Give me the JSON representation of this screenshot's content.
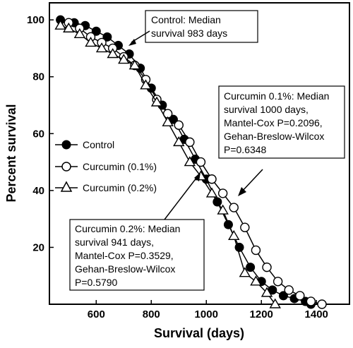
{
  "chart_data": {
    "type": "line",
    "xlabel": "Survival (days)",
    "ylabel": "Percent survival",
    "xlim": [
      430,
      1520
    ],
    "ylim": [
      0,
      106
    ],
    "xticks": [
      600,
      800,
      1000,
      1200,
      1400
    ],
    "yticks": [
      20,
      40,
      60,
      80,
      100
    ],
    "series": [
      {
        "name": "Control",
        "marker": "filled-circle",
        "x": [
          470,
          520,
          560,
          600,
          640,
          680,
          720,
          760,
          800,
          840,
          880,
          920,
          960,
          1000,
          1040,
          1080,
          1120,
          1160,
          1200,
          1240,
          1280,
          1320,
          1360,
          1380
        ],
        "values": [
          100,
          99,
          98,
          96,
          94,
          91,
          88,
          83,
          76,
          70,
          65,
          58,
          51,
          44,
          36,
          28,
          20,
          13,
          8,
          5,
          3,
          2,
          1,
          0
        ]
      },
      {
        "name": "Curcumin (0.1%)",
        "marker": "open-circle",
        "x": [
          500,
          540,
          580,
          620,
          660,
          700,
          740,
          780,
          820,
          860,
          900,
          940,
          980,
          1020,
          1060,
          1100,
          1140,
          1180,
          1220,
          1260,
          1300,
          1340,
          1380,
          1420
        ],
        "values": [
          99,
          97,
          94,
          92,
          90,
          87,
          84,
          79,
          72,
          67,
          63,
          57,
          50,
          44,
          39,
          34,
          27,
          19,
          13,
          8,
          5,
          3,
          1,
          0
        ]
      },
      {
        "name": "Curcumin (0.2%)",
        "marker": "open-triangle",
        "x": [
          470,
          500,
          540,
          580,
          620,
          660,
          700,
          740,
          780,
          820,
          860,
          900,
          940,
          980,
          1020,
          1060,
          1100,
          1140,
          1180,
          1220,
          1250
        ],
        "values": [
          98,
          97,
          95,
          92,
          90,
          88,
          86,
          84,
          77,
          71,
          64,
          57,
          50,
          45,
          39,
          33,
          24,
          11,
          8,
          4,
          0
        ]
      }
    ],
    "legend_position": "center-left",
    "annotations": [
      {
        "id": "control",
        "lines": [
          "Control: Median",
          "survival 983 days"
        ]
      },
      {
        "id": "c01",
        "lines": [
          "Curcumin 0.1%: Median",
          "survival 1000 days,",
          "Mantel-Cox P=0.2096,",
          "Gehan-Breslow-Wilcox",
          "P=0.6348"
        ]
      },
      {
        "id": "c02",
        "lines": [
          "Curcumin 0.2%: Median",
          "survival 941 days,",
          "Mantel-Cox P=0.3529,",
          "Gehan-Breslow-Wilcox",
          "P=0.5790"
        ]
      }
    ]
  }
}
